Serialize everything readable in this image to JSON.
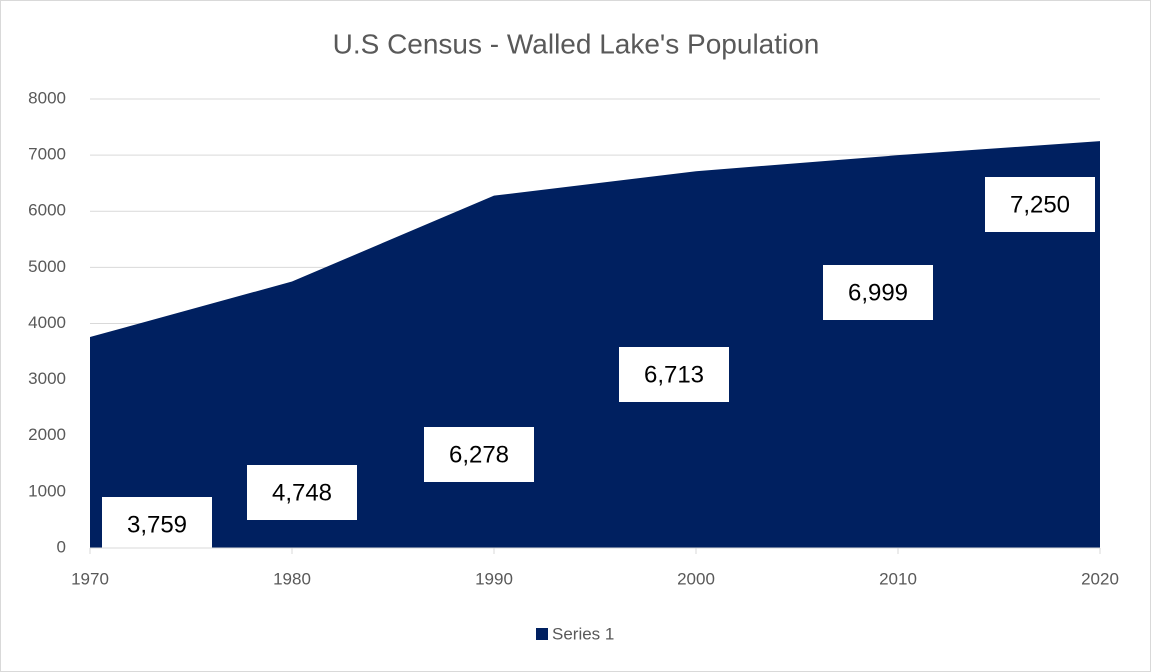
{
  "chart_data": {
    "type": "area",
    "title": "U.S Census - Walled Lake's Population",
    "x": [
      1970,
      1980,
      1990,
      2000,
      2010,
      2020
    ],
    "xlim": [
      1970,
      2020
    ],
    "xticks": [
      1970,
      1980,
      1990,
      2000,
      2010,
      2020
    ],
    "series": [
      {
        "name": "Series 1",
        "color": "#002060",
        "values": [
          3759,
          4748,
          6278,
          6713,
          6999,
          7250
        ],
        "value_labels": [
          "3,759",
          "4,748",
          "6,278",
          "6,713",
          "6,999",
          "7,250"
        ]
      }
    ],
    "ylim": [
      0,
      8000
    ],
    "yticks": [
      0,
      1000,
      2000,
      3000,
      4000,
      5000,
      6000,
      7000,
      8000
    ],
    "grid": true,
    "legend": "bottom"
  }
}
